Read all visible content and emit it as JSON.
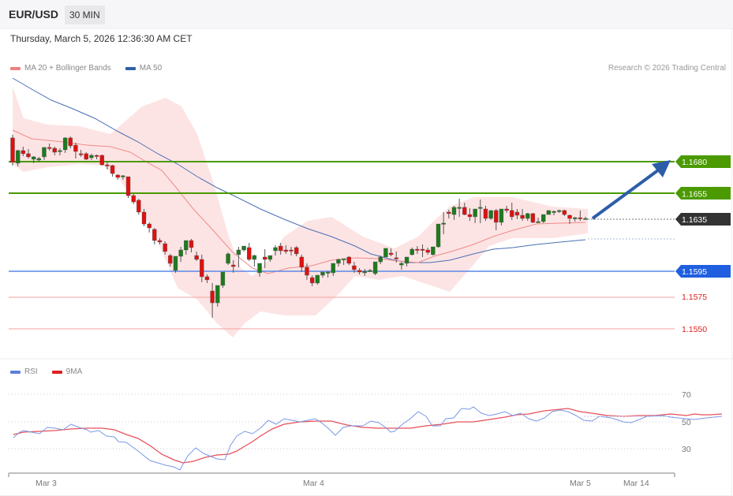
{
  "header": {
    "symbol": "EUR/USD",
    "timeframe": "30 MIN",
    "datetime": "Thursday, March 5, 2026 12:36:30 AM CET"
  },
  "legend": {
    "main": [
      {
        "label": "MA 20 + Bollinger Bands",
        "color": "#f08080"
      },
      {
        "label": "MA 50",
        "color": "#2f5fa6"
      }
    ],
    "rsi": [
      {
        "label": "RSI",
        "color": "#5b7fdc"
      },
      {
        "label": "9MA",
        "color": "#e02020"
      }
    ]
  },
  "credit": "Research © 2026 Trading Central",
  "colors": {
    "up": "#1e7a1e",
    "down": "#e01010",
    "resistance": "#4a9a00",
    "pivot": "#1f5fe0",
    "support": "#e02020",
    "last": "#333333",
    "band_fill": "#fde4e4",
    "ma20": "#f08a8a",
    "ma50": "#4a6fb5",
    "arrow": "#2c5ea8"
  },
  "chart_data": [
    {
      "type": "candlestick",
      "title": "EUR/USD 30 MIN",
      "indicators": [
        "MA 20 + Bollinger Bands",
        "MA 50"
      ],
      "x_labels": [
        "Mar 3",
        "Mar 4",
        "Mar 5",
        "Mar 14"
      ],
      "price_levels": [
        {
          "value": "1.1680",
          "type": "resistance",
          "style": "tag"
        },
        {
          "value": "1.1655",
          "type": "resistance",
          "style": "tag"
        },
        {
          "value": "1.1635",
          "type": "last",
          "style": "tag"
        },
        {
          "value": "1.1595",
          "type": "pivot",
          "style": "tag"
        },
        {
          "value": "1.1575",
          "type": "support",
          "style": "text"
        },
        {
          "value": "1.1550",
          "type": "support",
          "style": "text"
        }
      ],
      "arrow": {
        "from": 1.1635,
        "to": 1.168,
        "direction": "up"
      },
      "candles": [
        [
          1.16988,
          1.17013,
          1.16794,
          1.16769
        ],
        [
          1.16788,
          1.16894,
          1.16888,
          1.16763
        ],
        [
          1.16888,
          1.16919,
          1.16863,
          1.16844
        ],
        [
          1.16863,
          1.169,
          1.16838,
          1.16825
        ],
        [
          1.16819,
          1.16844,
          1.16838,
          1.16788
        ],
        [
          1.16813,
          1.16838,
          1.16825,
          1.16794
        ],
        [
          1.16838,
          1.16913,
          1.16913,
          1.16813
        ],
        [
          1.16913,
          1.16944,
          1.16906,
          1.16888
        ],
        [
          1.16906,
          1.16919,
          1.16875,
          1.1685
        ],
        [
          1.16888,
          1.16906,
          1.16888,
          1.1685
        ],
        [
          1.16894,
          1.16994,
          1.16988,
          1.16869
        ],
        [
          1.16988,
          1.17,
          1.16925,
          1.16906
        ],
        [
          1.16931,
          1.1695,
          1.16881,
          1.16825
        ],
        [
          1.16863,
          1.16894,
          1.16856,
          1.16838
        ],
        [
          1.16863,
          1.16875,
          1.16819,
          1.16813
        ],
        [
          1.16831,
          1.16863,
          1.1685,
          1.16813
        ],
        [
          1.1685,
          1.16856,
          1.16844,
          1.16819
        ],
        [
          1.1685,
          1.16856,
          1.16775,
          1.16769
        ],
        [
          1.16775,
          1.168,
          1.16769,
          1.16738
        ],
        [
          1.16769,
          1.16775,
          1.16706,
          1.16681
        ],
        [
          1.16694,
          1.167,
          1.16675,
          1.16656
        ],
        [
          1.16681,
          1.16694,
          1.16688,
          1.16656
        ],
        [
          1.16681,
          1.16681,
          1.16531,
          1.16513
        ],
        [
          1.16531,
          1.16544,
          1.16481,
          1.16463
        ],
        [
          1.16494,
          1.16506,
          1.164,
          1.16381
        ],
        [
          1.164,
          1.16425,
          1.16306,
          1.16288
        ],
        [
          1.16306,
          1.16319,
          1.16275,
          1.16238
        ],
        [
          1.16263,
          1.16275,
          1.16175,
          1.16144
        ],
        [
          1.16175,
          1.16194,
          1.16163,
          1.16144
        ],
        [
          1.1615,
          1.16169,
          1.16088,
          1.16063
        ],
        [
          1.16056,
          1.16069,
          1.15994,
          1.15969
        ],
        [
          1.15938,
          1.15981,
          1.1605,
          1.15919
        ],
        [
          1.1605,
          1.16125,
          1.161,
          1.16006
        ],
        [
          1.161,
          1.16131,
          1.16175,
          1.16063
        ],
        [
          1.16175,
          1.16188,
          1.16119,
          1.16081
        ],
        [
          1.16056,
          1.16088,
          1.16025,
          1.16013
        ],
        [
          1.16025,
          1.16063,
          1.15888,
          1.15844
        ],
        [
          1.15888,
          1.15906,
          1.15863,
          1.15838
        ],
        [
          1.15775,
          1.15838,
          1.15681,
          1.15563
        ],
        [
          1.15681,
          1.15713,
          1.15819,
          1.1565
        ],
        [
          1.15819,
          1.15856,
          1.15925,
          1.158
        ],
        [
          1.15994,
          1.16081,
          1.16069,
          1.15981
        ],
        [
          1.15981,
          1.16019,
          1.15969,
          1.15919
        ],
        [
          1.16063,
          1.16125,
          1.161,
          1.15963
        ],
        [
          1.161,
          1.16119,
          1.16131,
          1.16088
        ],
        [
          1.16119,
          1.16156,
          1.16025,
          1.16013
        ],
        [
          1.16025,
          1.16063,
          1.16056,
          1.15969
        ],
        [
          1.15919,
          1.15994,
          1.15994,
          1.15888
        ],
        [
          1.16044,
          1.16106,
          1.16025,
          1.15956
        ],
        [
          1.16025,
          1.16038,
          1.16056,
          1.16006
        ],
        [
          1.16094,
          1.16138,
          1.16119,
          1.16056
        ],
        [
          1.16131,
          1.16156,
          1.16094,
          1.16063
        ],
        [
          1.161,
          1.16138,
          1.16088,
          1.16069
        ],
        [
          1.161,
          1.16125,
          1.16094,
          1.16056
        ],
        [
          1.16119,
          1.16131,
          1.16069,
          1.1605
        ],
        [
          1.16044,
          1.16063,
          1.15963,
          1.15925
        ],
        [
          1.15963,
          1.15994,
          1.159,
          1.15863
        ],
        [
          1.15881,
          1.159,
          1.15838,
          1.15813
        ],
        [
          1.15838,
          1.15863,
          1.159,
          1.15825
        ],
        [
          1.159,
          1.15919,
          1.15925,
          1.15881
        ],
        [
          1.15925,
          1.15931,
          1.15925,
          1.15881
        ],
        [
          1.15919,
          1.15944,
          1.15994,
          1.15894
        ],
        [
          1.15994,
          1.16031,
          1.16025,
          1.15969
        ],
        [
          1.16025,
          1.16031,
          1.16031,
          1.15981
        ],
        [
          1.16044,
          1.1605,
          1.15994,
          1.15981
        ],
        [
          1.15975,
          1.16006,
          1.15944,
          1.15919
        ],
        [
          1.15938,
          1.15956,
          1.15925,
          1.15906
        ],
        [
          1.15919,
          1.1595,
          1.15931,
          1.15894
        ],
        [
          1.15931,
          1.1595,
          1.15938,
          1.15925
        ],
        [
          1.15913,
          1.1595,
          1.16006,
          1.159
        ],
        [
          1.16006,
          1.16056,
          1.16044,
          1.15988
        ],
        [
          1.16044,
          1.16094,
          1.16113,
          1.16044
        ],
        [
          1.16075,
          1.16113,
          1.16063,
          1.1605
        ],
        [
          1.16038,
          1.16088,
          1.16031,
          1.16
        ],
        [
          1.15981,
          1.16006,
          1.15994,
          1.15944
        ],
        [
          1.15994,
          1.16044,
          1.16044,
          1.15969
        ],
        [
          1.16063,
          1.16119,
          1.16106,
          1.16056
        ],
        [
          1.16106,
          1.16131,
          1.161,
          1.16069
        ],
        [
          1.16106,
          1.16144,
          1.161,
          1.16044
        ],
        [
          1.161,
          1.16119,
          1.16081,
          1.16063
        ],
        [
          1.16063,
          1.16075,
          1.16125,
          1.16056
        ],
        [
          1.16125,
          1.16125,
          1.16306,
          1.16118
        ],
        [
          1.16306,
          1.164,
          1.16313,
          1.16225
        ],
        [
          1.164,
          1.16419,
          1.16388,
          1.1635
        ],
        [
          1.16381,
          1.1645,
          1.16438,
          1.16338
        ],
        [
          1.16438,
          1.16506,
          1.16438,
          1.16363
        ],
        [
          1.16438,
          1.16475,
          1.16381,
          1.16375
        ],
        [
          1.16381,
          1.16431,
          1.16363,
          1.16331
        ],
        [
          1.16363,
          1.16394,
          1.16425,
          1.16313
        ],
        [
          1.16438,
          1.165,
          1.16438,
          1.16313
        ],
        [
          1.16425,
          1.1645,
          1.1635,
          1.16331
        ],
        [
          1.1635,
          1.16375,
          1.16413,
          1.16338
        ],
        [
          1.16413,
          1.16425,
          1.16319,
          1.16256
        ],
        [
          1.16319,
          1.16344,
          1.16425,
          1.16294
        ],
        [
          1.16425,
          1.1645,
          1.16413,
          1.16394
        ],
        [
          1.16413,
          1.16475,
          1.16363,
          1.16338
        ],
        [
          1.164,
          1.16425,
          1.16375,
          1.16344
        ],
        [
          1.16375,
          1.16425,
          1.1635,
          1.16331
        ],
        [
          1.1635,
          1.16394,
          1.16388,
          1.16331
        ],
        [
          1.16388,
          1.16394,
          1.16319,
          1.16313
        ],
        [
          1.16325,
          1.16356,
          1.16325,
          1.16319
        ],
        [
          1.16325,
          1.16363,
          1.16381,
          1.16313
        ],
        [
          1.16381,
          1.16394,
          1.16413,
          1.16381
        ],
        [
          1.164,
          1.16413,
          1.16406,
          1.16375
        ],
        [
          1.16406,
          1.16419,
          1.16413,
          1.16394
        ],
        [
          1.16413,
          1.16419,
          1.16381,
          1.16369
        ],
        [
          1.16375,
          1.16381,
          1.1635,
          1.16306
        ],
        [
          1.1635,
          1.16363,
          1.16356,
          1.16325
        ],
        [
          1.16356,
          1.16413,
          1.1635,
          1.16331
        ],
        [
          1.1635,
          1.16363,
          1.1635,
          1.1635
        ]
      ]
    },
    {
      "type": "line",
      "title": "RSI",
      "series": [
        {
          "name": "RSI",
          "color": "#5b7fdc"
        },
        {
          "name": "9MA",
          "color": "#e02020"
        }
      ],
      "yticks": [
        70,
        50,
        30
      ],
      "x_labels": [
        "Mar 3",
        "Mar 4",
        "Mar 5",
        "Mar 14"
      ],
      "last_values": {
        "RSI": 54,
        "9MA": 54
      }
    }
  ]
}
